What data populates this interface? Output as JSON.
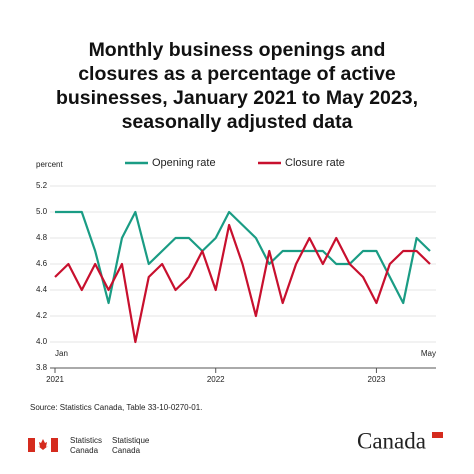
{
  "chart_data": {
    "type": "line",
    "title": "Monthly business openings and closures as a percentage of active businesses, January 2021 to May 2023, seasonally adjusted data",
    "y_label": "percent",
    "x": [
      "2021-01",
      "2021-02",
      "2021-03",
      "2021-04",
      "2021-05",
      "2021-06",
      "2021-07",
      "2021-08",
      "2021-09",
      "2021-10",
      "2021-11",
      "2021-12",
      "2022-01",
      "2022-02",
      "2022-03",
      "2022-04",
      "2022-05",
      "2022-06",
      "2022-07",
      "2022-08",
      "2022-09",
      "2022-10",
      "2022-11",
      "2022-12",
      "2023-01",
      "2023-02",
      "2023-03",
      "2023-04",
      "2023-05"
    ],
    "series": [
      {
        "name": "Opening rate",
        "color": "#1a9c84",
        "values": [
          5.0,
          5.0,
          5.0,
          4.7,
          4.3,
          4.8,
          5.0,
          4.6,
          4.7,
          4.8,
          4.8,
          4.7,
          4.8,
          5.0,
          4.9,
          4.8,
          4.6,
          4.7,
          4.7,
          4.7,
          4.7,
          4.6,
          4.6,
          4.7,
          4.7,
          4.5,
          4.3,
          4.8,
          4.7
        ]
      },
      {
        "name": "Closure rate",
        "color": "#c8102e",
        "values": [
          4.5,
          4.6,
          4.4,
          4.6,
          4.4,
          4.6,
          4.0,
          4.5,
          4.6,
          4.4,
          4.5,
          4.7,
          4.4,
          4.9,
          4.6,
          4.2,
          4.7,
          4.3,
          4.6,
          4.8,
          4.6,
          4.8,
          4.6,
          4.5,
          4.3,
          4.6,
          4.7,
          4.7,
          4.6
        ]
      }
    ],
    "ylim": [
      3.8,
      5.2
    ],
    "yticks": [
      3.8,
      {
        "value": 4.0,
        "label": "4.0"
      },
      4.2,
      4.4,
      4.6,
      4.8,
      {
        "value": 5.0,
        "label": "5.0"
      },
      5.2
    ],
    "xticks": [
      {
        "value": "2021-01",
        "label": "2021"
      },
      {
        "value": "2022-01",
        "label": "2022"
      },
      {
        "value": "2023-01",
        "label": "2023"
      }
    ],
    "annotations": [
      "Jan",
      "May"
    ],
    "grid": true,
    "source": "Source: Statistics Canada, Table 33-10-0270-01."
  },
  "footer": {
    "en": [
      "Statistics",
      "Canada"
    ],
    "fr": [
      "Statistique",
      "Canada"
    ],
    "wordmark": "Canada"
  }
}
